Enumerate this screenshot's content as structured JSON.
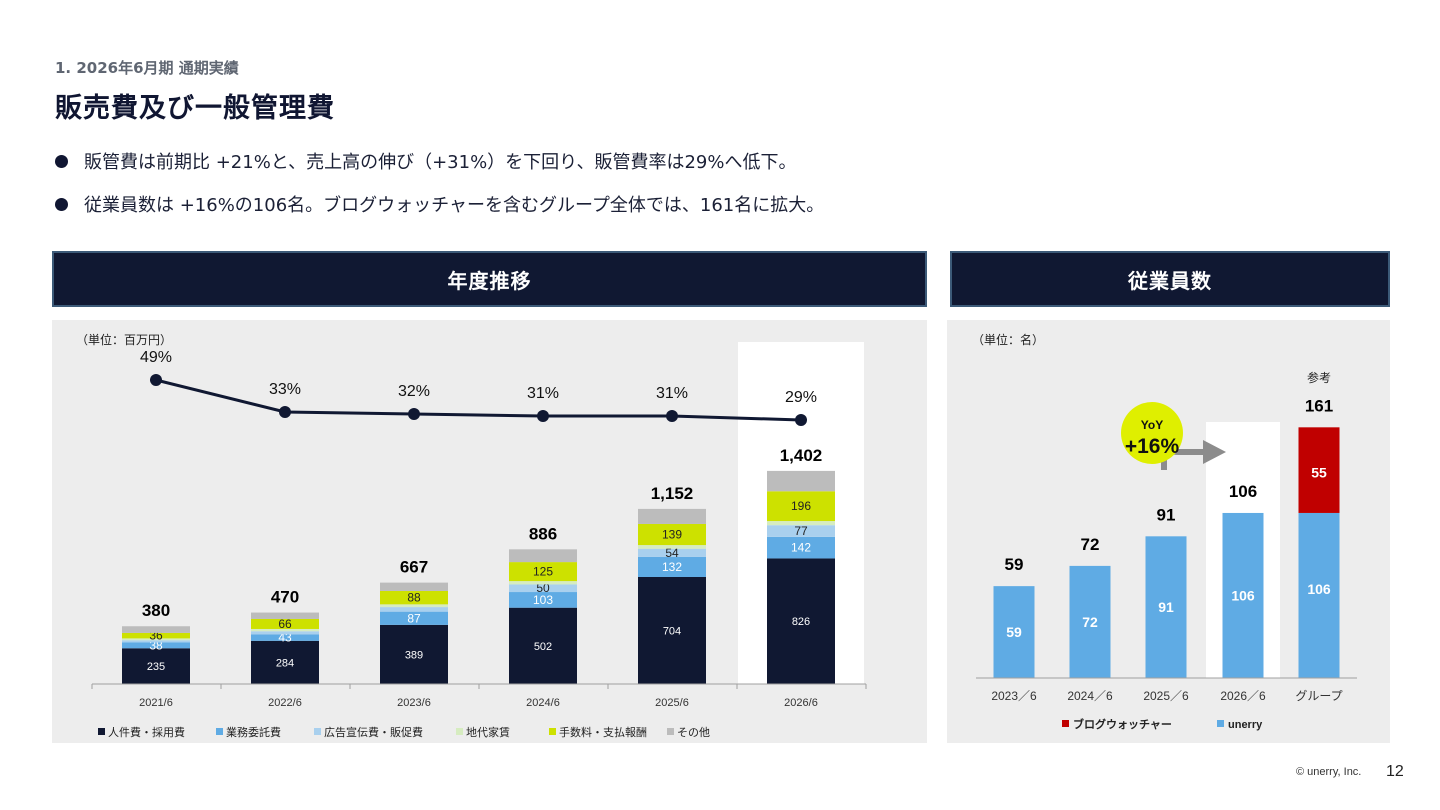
{
  "header": {
    "subtitle": "1. 2026年6月期 通期実績",
    "title": "販売費及び一般管理費"
  },
  "bullets": [
    "販管費は前期比 +21%と、売上高の伸び（+31%）を下回り、販管費率は29%へ低下。",
    "従業員数は +16%の106名。ブログウォッチャーを含むグループ全体では、161名に拡大。"
  ],
  "sections": {
    "left_title": "年度推移",
    "right_title": "従業員数"
  },
  "colors": {
    "navy": "#101832",
    "blue": "#5fabe4",
    "lightblue": "#a9d0ee",
    "palegreen": "#d6ecc0",
    "lime": "#cde100",
    "gray": "#bcbcbc",
    "red": "#c00000",
    "arrow": "#8c8c8c"
  },
  "footer": {
    "copyright": "© unerry, Inc.",
    "page": "12"
  },
  "chart_data": [
    {
      "type": "bar",
      "stacked": true,
      "unit_label": "（単位：百万円）",
      "categories": [
        "2021/6",
        "2022/6",
        "2023/6",
        "2024/6",
        "2025/6",
        "2026/6"
      ],
      "series": [
        {
          "name": "人件費・採用費",
          "values": [
            235,
            284,
            389,
            502,
            704,
            826
          ],
          "labels": [
            "235",
            "284",
            "389",
            "502",
            "704",
            "826"
          ]
        },
        {
          "name": "業務委託費",
          "values": [
            38,
            43,
            87,
            103,
            132,
            142
          ],
          "labels": [
            "38",
            "43",
            "87",
            "103",
            "132",
            "142"
          ]
        },
        {
          "name": "広告宣伝費・販促費",
          "values": [
            15,
            20,
            30,
            50,
            54,
            77
          ],
          "labels": [
            "",
            "",
            "",
            "50",
            "54",
            "77"
          ]
        },
        {
          "name": "地代家賃",
          "values": [
            12,
            15,
            18,
            22,
            24,
            27
          ],
          "labels": [
            "",
            "",
            "",
            "",
            "",
            ""
          ]
        },
        {
          "name": "手数料・支払報酬",
          "values": [
            36,
            66,
            88,
            125,
            139,
            196
          ],
          "labels": [
            "36",
            "66",
            "88",
            "125",
            "139",
            "196"
          ]
        },
        {
          "name": "その他",
          "values": [
            44,
            42,
            55,
            84,
            99,
            134
          ],
          "labels": [
            "",
            "",
            "",
            "",
            "",
            ""
          ]
        }
      ],
      "totals": [
        380,
        470,
        667,
        886,
        1152,
        1402
      ],
      "total_labels": [
        "380",
        "470",
        "667",
        "886",
        "1,152",
        "1,402"
      ],
      "ratio": {
        "values": [
          49,
          33,
          32,
          31,
          31,
          29
        ],
        "labels": [
          "49%",
          "33%",
          "32%",
          "31%",
          "31%",
          "29%"
        ]
      },
      "highlight_category": "2026/6"
    },
    {
      "type": "bar",
      "stacked": true,
      "unit_label": "（単位：名）",
      "categories": [
        "2023／6",
        "2024／6",
        "2025／6",
        "2026／6",
        "グループ"
      ],
      "series": [
        {
          "name": "unerry",
          "values": [
            59,
            72,
            91,
            106,
            106
          ],
          "labels": [
            "59",
            "72",
            "91",
            "106",
            "106"
          ]
        },
        {
          "name": "ブログウォッチャー",
          "values": [
            0,
            0,
            0,
            0,
            55
          ],
          "labels": [
            "",
            "",
            "",
            "",
            "55"
          ]
        }
      ],
      "totals": [
        59,
        72,
        91,
        106,
        161
      ],
      "total_labels": [
        "59",
        "72",
        "91",
        "106",
        "161"
      ],
      "reference_label": "参考",
      "yoy": {
        "line1": "YoY",
        "line2": "+16%"
      },
      "highlight_category": "2026／6"
    }
  ]
}
